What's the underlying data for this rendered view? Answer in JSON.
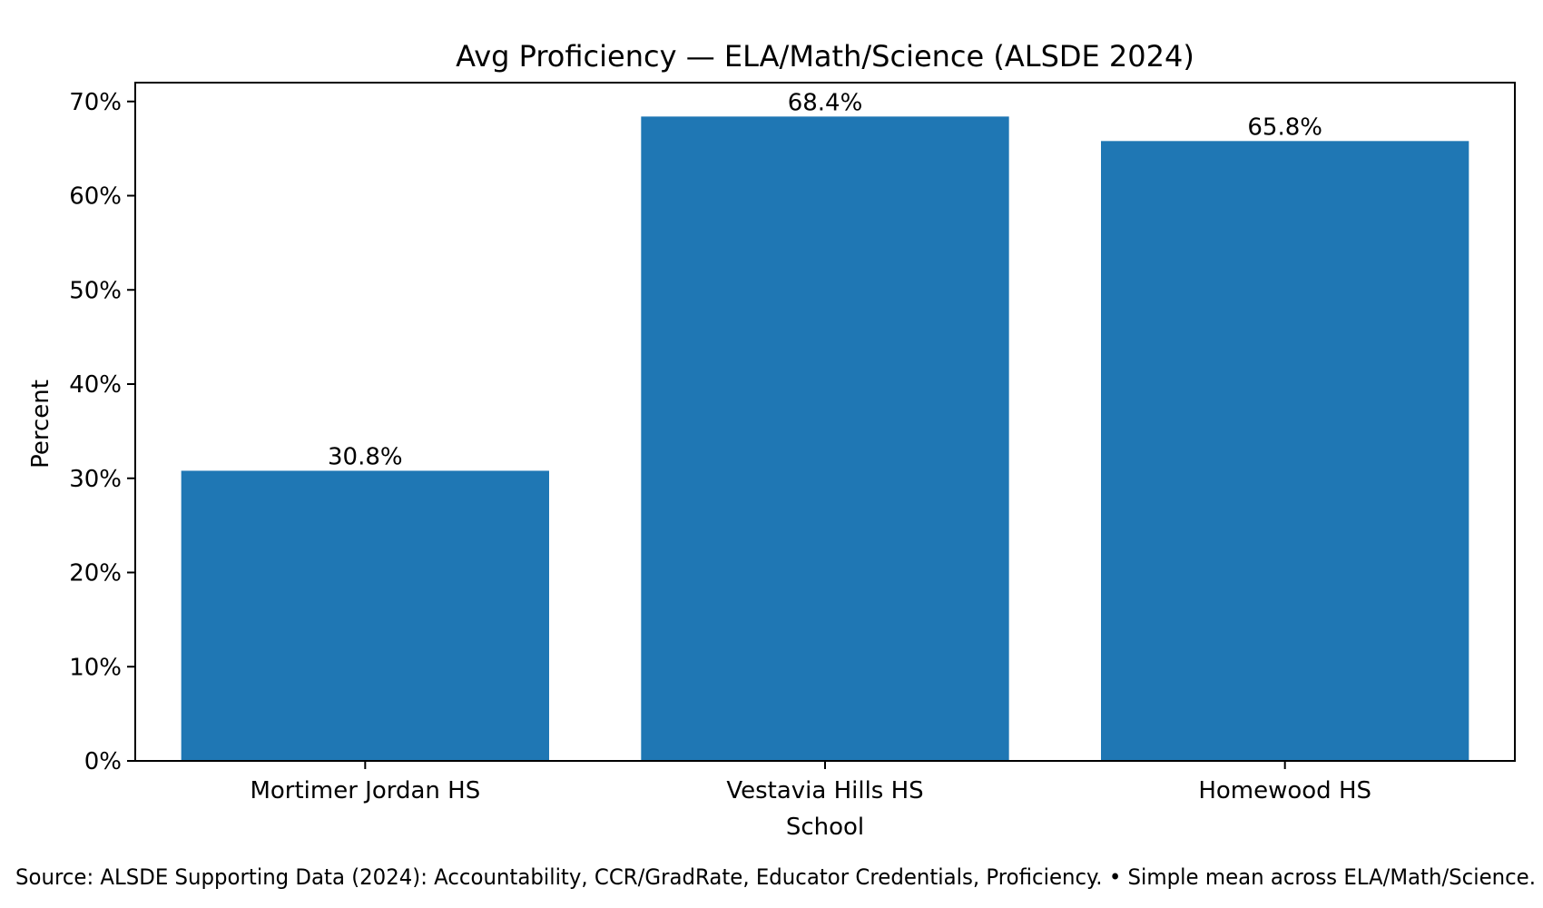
{
  "chart_data": {
    "type": "bar",
    "title": "Avg Proficiency — ELA/Math/Science (ALSDE 2024)",
    "xlabel": "School",
    "ylabel": "Percent",
    "categories": [
      "Mortimer Jordan HS",
      "Vestavia Hills HS",
      "Homewood HS"
    ],
    "values": [
      30.8,
      68.4,
      65.8
    ],
    "data_labels": [
      "30.8%",
      "68.4%",
      "65.8%"
    ],
    "ylim": [
      0,
      72
    ],
    "yticks": [
      0,
      10,
      20,
      30,
      40,
      50,
      60,
      70
    ],
    "ytick_labels": [
      "0%",
      "10%",
      "20%",
      "30%",
      "40%",
      "50%",
      "60%",
      "70%"
    ],
    "grid": false,
    "bar_color": "#1f77b4"
  },
  "footer": {
    "source_text": "Source: ALSDE Supporting Data (2024): Accountability, CCR/GradRate, Educator Credentials, Proficiency. • Simple mean across ELA/Math/Science."
  }
}
